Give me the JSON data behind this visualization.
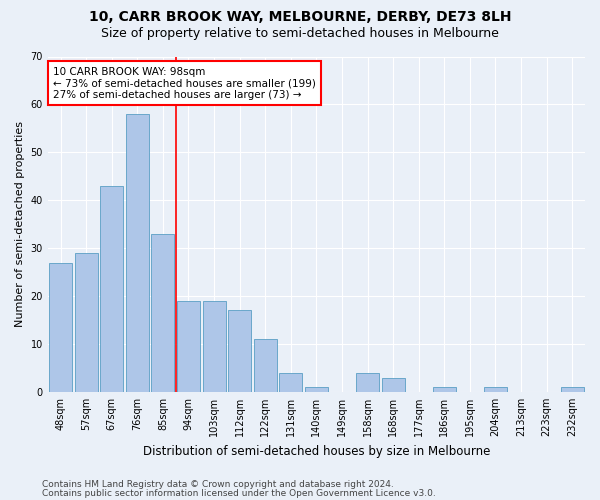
{
  "title1": "10, CARR BROOK WAY, MELBOURNE, DERBY, DE73 8LH",
  "title2": "Size of property relative to semi-detached houses in Melbourne",
  "xlabel": "Distribution of semi-detached houses by size in Melbourne",
  "ylabel": "Number of semi-detached properties",
  "categories": [
    "48sqm",
    "57sqm",
    "67sqm",
    "76sqm",
    "85sqm",
    "94sqm",
    "103sqm",
    "112sqm",
    "122sqm",
    "131sqm",
    "140sqm",
    "149sqm",
    "158sqm",
    "168sqm",
    "177sqm",
    "186sqm",
    "195sqm",
    "204sqm",
    "213sqm",
    "223sqm",
    "232sqm"
  ],
  "values": [
    27,
    29,
    43,
    58,
    33,
    19,
    19,
    17,
    11,
    4,
    1,
    0,
    4,
    3,
    0,
    1,
    0,
    1,
    0,
    0,
    1
  ],
  "bar_color": "#aec6e8",
  "bar_edge_color": "#5a9fc5",
  "vline_color": "red",
  "vline_x_index": 5,
  "annotation_text": "10 CARR BROOK WAY: 98sqm\n← 73% of semi-detached houses are smaller (199)\n27% of semi-detached houses are larger (73) →",
  "annotation_box_color": "white",
  "annotation_box_edge_color": "red",
  "ylim": [
    0,
    70
  ],
  "yticks": [
    0,
    10,
    20,
    30,
    40,
    50,
    60,
    70
  ],
  "footer1": "Contains HM Land Registry data © Crown copyright and database right 2024.",
  "footer2": "Contains public sector information licensed under the Open Government Licence v3.0.",
  "bg_color": "#eaf0f8",
  "plot_bg_color": "#eaf0f8",
  "title1_fontsize": 10,
  "title2_fontsize": 9,
  "xlabel_fontsize": 8.5,
  "ylabel_fontsize": 8,
  "tick_fontsize": 7,
  "annotation_fontsize": 7.5,
  "footer_fontsize": 6.5
}
